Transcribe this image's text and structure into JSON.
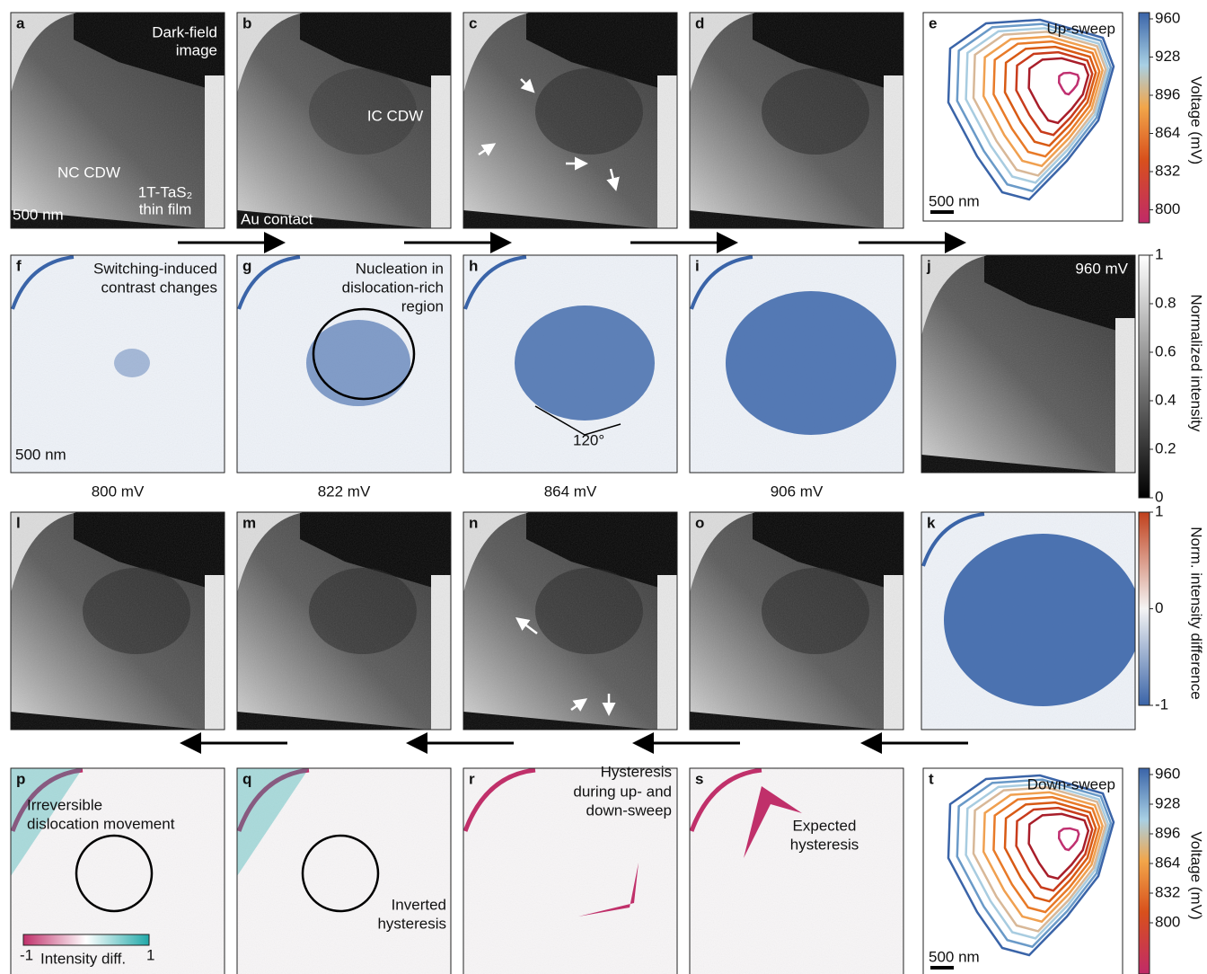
{
  "panels": [
    {
      "letter": "a",
      "labels": [
        "Dark-field",
        "image",
        "NC CDW",
        "1T-TaS₂",
        "thin film",
        "500 nm"
      ]
    },
    {
      "letter": "b",
      "labels": [
        "IC CDW",
        "Au contact"
      ]
    },
    {
      "letter": "c",
      "labels": []
    },
    {
      "letter": "d",
      "labels": []
    },
    {
      "letter": "e",
      "labels": [
        "Up-sweep",
        "500 nm"
      ]
    },
    {
      "letter": "f",
      "labels": [
        "Switching-induced",
        "contrast changes",
        "500 nm"
      ]
    },
    {
      "letter": "g",
      "labels": [
        "Nucleation in",
        "dislocation-rich",
        "region"
      ]
    },
    {
      "letter": "h",
      "labels": [
        "120°"
      ]
    },
    {
      "letter": "i",
      "labels": []
    },
    {
      "letter": "j",
      "labels": [
        "960 mV"
      ]
    },
    {
      "letter": "l",
      "labels": []
    },
    {
      "letter": "m",
      "labels": []
    },
    {
      "letter": "n",
      "labels": []
    },
    {
      "letter": "o",
      "labels": []
    },
    {
      "letter": "k",
      "labels": []
    },
    {
      "letter": "p",
      "labels": [
        "Irreversible",
        "dislocation movement"
      ]
    },
    {
      "letter": "q",
      "labels": [
        "Inverted",
        "hysteresis"
      ]
    },
    {
      "letter": "r",
      "labels": [
        "Hysteresis",
        "during up- and",
        "down-sweep"
      ]
    },
    {
      "letter": "s",
      "labels": [
        "Expected",
        "hysteresis"
      ]
    },
    {
      "letter": "t",
      "labels": [
        "Down-sweep",
        "500 nm"
      ]
    }
  ],
  "voltages": [
    "800 mV",
    "822 mV",
    "864 mV",
    "906 mV"
  ],
  "colorbars": {
    "voltage_up": {
      "label": "Voltage (mV)",
      "ticks": [
        960,
        928,
        896,
        864,
        832,
        800
      ]
    },
    "normalized": {
      "label": "Normalized intensity",
      "ticks": [
        1,
        0.8,
        0.6,
        0.4,
        0.2,
        0
      ]
    },
    "difference": {
      "label": "Norm. intensity difference",
      "ticks": [
        1,
        0,
        -1
      ]
    },
    "voltage_down": {
      "label": "Voltage (mV)",
      "ticks": [
        960,
        928,
        896,
        864,
        832,
        800
      ]
    },
    "inset": {
      "label": "Intensity diff.",
      "ticks": [
        -1,
        1
      ]
    }
  }
}
